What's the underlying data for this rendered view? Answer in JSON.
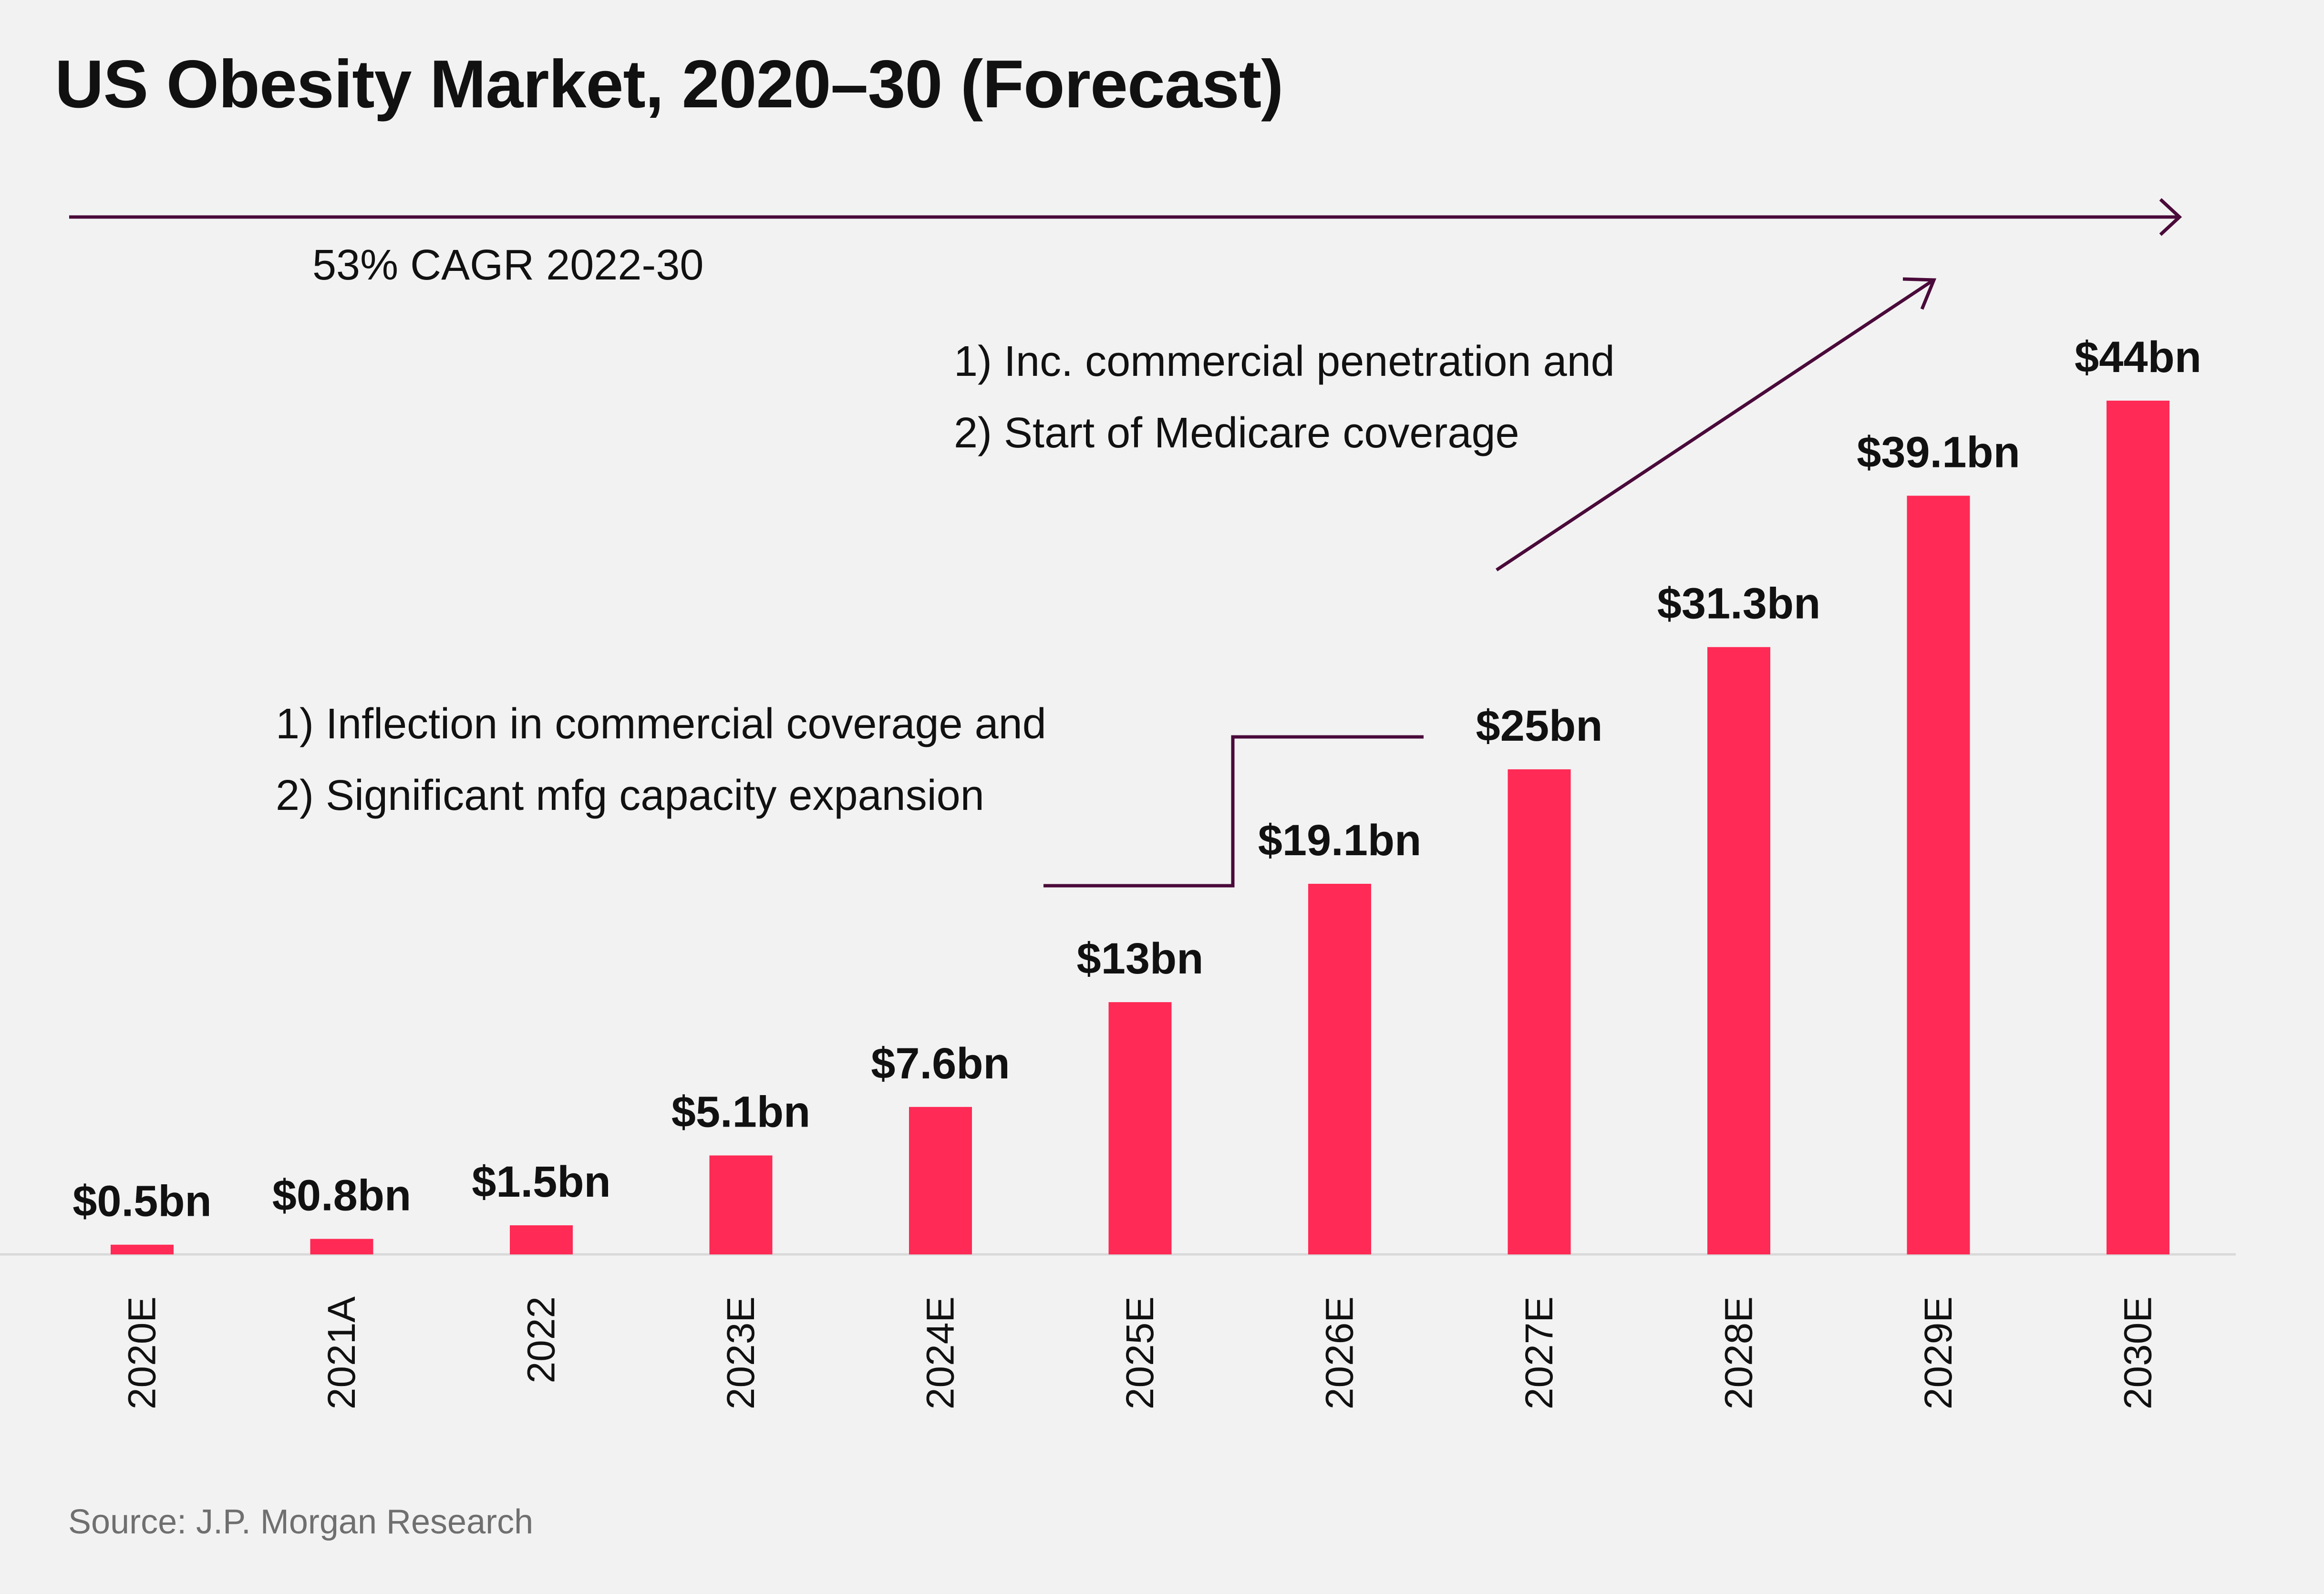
{
  "colors": {
    "background": "#f2f2f2",
    "bar": "#ff2a55",
    "arrow": "#4a0a3a",
    "axis": "#d9d9d9",
    "text": "#111111",
    "source": "#6f6f6f"
  },
  "annotations": {
    "cagr": "53% CAGR 2022-30",
    "upper_line1": "1) Inc. commercial penetration and",
    "upper_line2": "2) Start of Medicare coverage",
    "lower_line1": "1) Inflection in commercial coverage and",
    "lower_line2": "2) Significant mfg capacity expansion"
  },
  "source": "Source: J.P. Morgan Research",
  "chart_data": {
    "type": "bar",
    "title": "US Obesity Market, 2020–30 (Forecast)",
    "xlabel": "",
    "ylabel": "",
    "categories": [
      "2020E",
      "2021A",
      "2022",
      "2023E",
      "2024E",
      "2025E",
      "2026E",
      "2027E",
      "2028E",
      "2029E",
      "2030E"
    ],
    "values": [
      0.5,
      0.8,
      1.5,
      5.1,
      7.6,
      13,
      19.1,
      25,
      31.3,
      39.1,
      44
    ],
    "value_labels": [
      "$0.5bn",
      "$0.8bn",
      "$1.5bn",
      "$5.1bn",
      "$7.6bn",
      "$13bn",
      "$19.1bn",
      "$25bn",
      "$31.3bn",
      "$39.1bn",
      "$44bn"
    ],
    "unit": "$bn",
    "ylim": [
      0,
      44
    ],
    "grid": false,
    "legend": "none"
  }
}
